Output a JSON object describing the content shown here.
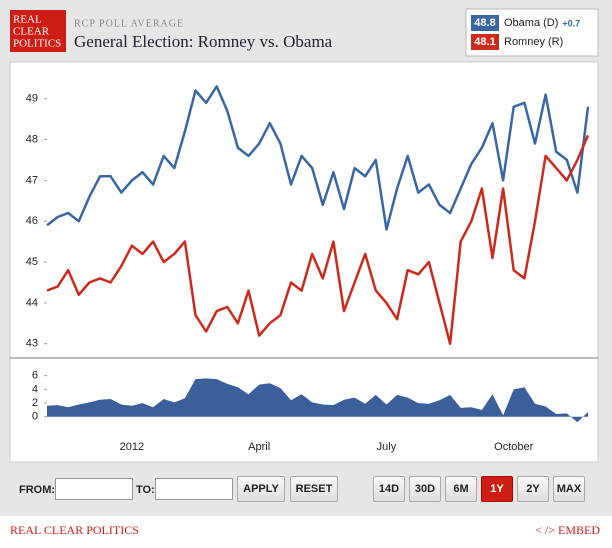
{
  "header": {
    "logo": [
      "REAL",
      "CLEAR",
      "POLITICS"
    ],
    "kicker": "RCP POLL AVERAGE",
    "title": "General Election: Romney vs. Obama"
  },
  "chart_data": {
    "type": "line",
    "categories": [
      null,
      null,
      null,
      null,
      null,
      null,
      null,
      null,
      "2012",
      null,
      null,
      null,
      null,
      null,
      null,
      null,
      null,
      null,
      null,
      null,
      "April",
      null,
      null,
      null,
      null,
      null,
      null,
      null,
      null,
      null,
      null,
      null,
      "July",
      null,
      null,
      null,
      null,
      null,
      null,
      null,
      null,
      null,
      null,
      null,
      "October",
      null,
      null,
      null,
      null,
      null,
      null,
      null
    ],
    "series": [
      {
        "name": "Obama (D)",
        "color": "#3a66a3",
        "latest_label": "48.8",
        "change_label": "+0.7",
        "values": [
          45.9,
          46.1,
          46.2,
          46.0,
          46.6,
          47.1,
          47.1,
          46.7,
          47.0,
          47.2,
          46.9,
          47.6,
          47.3,
          48.2,
          49.2,
          48.9,
          49.3,
          48.7,
          47.8,
          47.6,
          47.9,
          48.4,
          47.9,
          46.9,
          47.6,
          47.3,
          46.4,
          47.2,
          46.3,
          47.3,
          47.1,
          47.5,
          45.8,
          46.8,
          47.6,
          46.7,
          46.9,
          46.4,
          46.2,
          46.8,
          47.4,
          47.8,
          48.4,
          47.0,
          48.8,
          48.9,
          47.9,
          49.1,
          47.7,
          47.5,
          46.7,
          48.8
        ]
      },
      {
        "name": "Romney (R)",
        "color": "#cc2a1c",
        "latest_label": "48.1",
        "values": [
          44.3,
          44.4,
          44.8,
          44.2,
          44.5,
          44.6,
          44.5,
          44.9,
          45.4,
          45.2,
          45.5,
          45.0,
          45.2,
          45.5,
          43.7,
          43.3,
          43.8,
          43.9,
          43.5,
          44.3,
          43.2,
          43.5,
          43.7,
          44.5,
          44.3,
          45.2,
          44.6,
          45.5,
          43.8,
          44.5,
          45.2,
          44.3,
          44.0,
          43.6,
          44.8,
          44.7,
          45.0,
          44.0,
          43.0,
          45.5,
          46.0,
          46.8,
          45.1,
          46.8,
          44.8,
          44.6,
          46.0,
          47.6,
          47.3,
          47.0,
          47.5,
          48.1
        ]
      }
    ],
    "ylim": [
      42.7,
      49.8
    ],
    "yticks": [
      43,
      44,
      45,
      46,
      47,
      48,
      49
    ],
    "spread": {
      "type": "area",
      "color": "#3a5f9a",
      "values": [
        1.6,
        1.7,
        1.4,
        1.8,
        2.1,
        2.5,
        2.6,
        1.8,
        1.6,
        2.0,
        1.4,
        2.6,
        2.1,
        2.7,
        5.5,
        5.6,
        5.5,
        4.8,
        4.3,
        3.3,
        4.7,
        4.9,
        4.2,
        2.4,
        3.3,
        2.1,
        1.8,
        1.7,
        2.5,
        2.8,
        1.9,
        3.2,
        1.8,
        3.2,
        2.8,
        2.0,
        1.9,
        2.4,
        3.2,
        1.3,
        1.4,
        1.0,
        3.3,
        0.2,
        4.0,
        4.3,
        1.9,
        1.5,
        0.4,
        0.5,
        -0.8,
        0.7
      ],
      "ylim": [
        -1.2,
        8
      ],
      "yticks": [
        0,
        2,
        4,
        6
      ]
    }
  },
  "controls": {
    "from": "FROM:",
    "to": "TO:",
    "apply": "APPLY",
    "reset": "RESET",
    "ranges": [
      "14D",
      "30D",
      "6M",
      "1Y",
      "2Y",
      "MAX"
    ],
    "active": "1Y"
  },
  "footer": {
    "left": "REAL CLEAR POLITICS",
    "right": "< /> EMBED"
  }
}
